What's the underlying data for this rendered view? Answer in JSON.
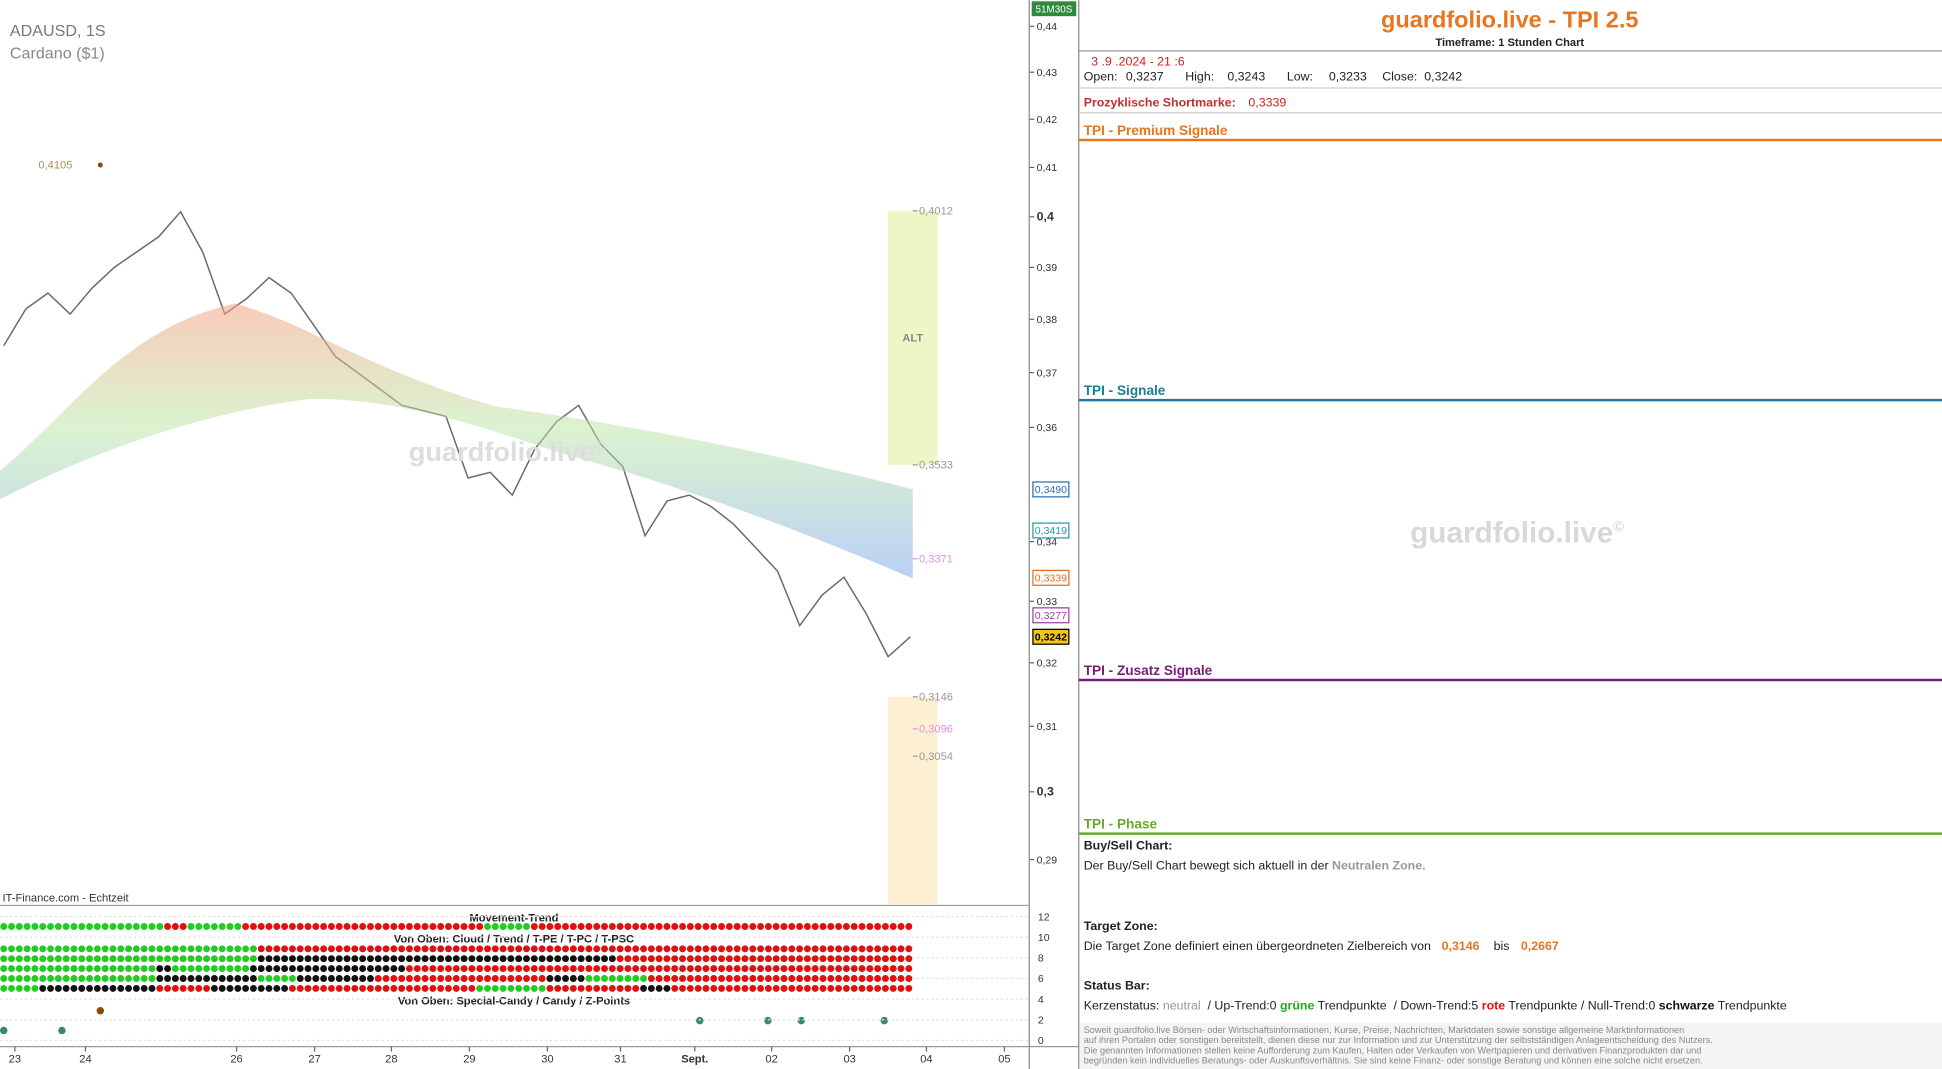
{
  "chart": {
    "symbol": "ADAUSD, 1S",
    "name": "Cardano ($1)",
    "countdown": "51M30S",
    "watermark": "guardfolio.live",
    "watermark_mark": "©",
    "source": "IT-Finance.com - Echtzeit",
    "log_scale": true,
    "ylim": [
      0.2836,
      0.4458
    ],
    "yticks": [
      {
        "value": 0.44,
        "label": "0,44"
      },
      {
        "value": 0.43,
        "label": "0,43"
      },
      {
        "value": 0.42,
        "label": "0,42"
      },
      {
        "value": 0.41,
        "label": "0,41"
      },
      {
        "value": 0.4,
        "label": "0,4"
      },
      {
        "value": 0.39,
        "label": "0,39"
      },
      {
        "value": 0.38,
        "label": "0,38"
      },
      {
        "value": 0.37,
        "label": "0,37"
      },
      {
        "value": 0.36,
        "label": "0,36"
      },
      {
        "value": 0.34,
        "label": "0,34"
      },
      {
        "value": 0.33,
        "label": "0,33"
      },
      {
        "value": 0.32,
        "label": "0,32"
      },
      {
        "value": 0.31,
        "label": "0,31"
      },
      {
        "value": 0.3,
        "label": "0,3"
      },
      {
        "value": 0.29,
        "label": "0,29"
      }
    ],
    "xticks": [
      "23",
      "24",
      "26",
      "27",
      "28",
      "29",
      "30",
      "31",
      "Sept.",
      "02",
      "03",
      "04",
      "05"
    ],
    "price": {
      "color": "#6a6a6a",
      "values": [
        0.375,
        0.382,
        0.385,
        0.381,
        0.386,
        0.39,
        0.393,
        0.396,
        0.401,
        0.393,
        0.381,
        0.384,
        0.388,
        0.385,
        0.379,
        0.373,
        0.37,
        0.367,
        0.364,
        0.363,
        0.362,
        0.351,
        0.352,
        0.348,
        0.356,
        0.361,
        0.364,
        0.357,
        0.353,
        0.341,
        0.347,
        0.348,
        0.346,
        0.343,
        0.339,
        0.335,
        0.326,
        0.331,
        0.334,
        0.328,
        0.321,
        0.3242
      ]
    },
    "high_label": {
      "value": 0.4105,
      "label": "0,4105",
      "color": "#b08a5a"
    },
    "levels": [
      {
        "value": 0.4012,
        "label": "0,4012",
        "color": "#999999"
      },
      {
        "value": 0.3533,
        "label": "0,3533",
        "color": "#999999"
      },
      {
        "value": 0.3371,
        "label": "0,3371",
        "color": "#e090e0"
      },
      {
        "value": 0.3146,
        "label": "0,3146",
        "color": "#999999"
      },
      {
        "value": 0.3096,
        "label": "0,3096",
        "color": "#e090e0"
      },
      {
        "value": 0.3054,
        "label": "0,3054",
        "color": "#999999"
      }
    ],
    "axis_marks": [
      {
        "value": 0.349,
        "label": "0,3490",
        "color": "#2a6fb0",
        "fill": "#ffffff"
      },
      {
        "value": 0.3419,
        "label": "0,3419",
        "color": "#20a0a0",
        "fill": "#ffffff"
      },
      {
        "value": 0.3339,
        "label": "0,3339",
        "color": "#e07020",
        "fill": "#ffffff"
      },
      {
        "value": 0.3277,
        "label": "0,3277",
        "color": "#a040a0",
        "fill": "#ffffff"
      },
      {
        "value": 0.3242,
        "label": "0,3242",
        "color": "#000000",
        "fill": "#f5c518"
      }
    ],
    "zones": [
      {
        "label": "ALT",
        "top": 0.4012,
        "bottom": 0.3533,
        "color": "#eef6c6"
      },
      {
        "top": 0.3146,
        "color": "#fdf0d2"
      }
    ]
  },
  "indicator": {
    "title1": "Movement-Trend",
    "title2": "Von Oben: Cloud / Trend / T-PE / T-PC / T-PSC",
    "title3": "Von Oben: Special-Candy / Candy / Z-Points",
    "ylim": [
      0,
      12
    ],
    "yticks": [
      12,
      10,
      8,
      6,
      4,
      2,
      0
    ],
    "rows": [
      [
        [
          "#22cc22",
          21
        ],
        [
          "#e01010",
          3
        ],
        [
          "#22cc22",
          7
        ],
        [
          "#e01010",
          31
        ],
        [
          "#22cc22",
          6
        ],
        [
          "#e01010",
          49
        ]
      ],
      [
        [
          "#22cc22",
          33
        ],
        [
          "#e01010",
          84
        ]
      ],
      [
        [
          "#22cc22",
          33
        ],
        [
          "#111111",
          46
        ],
        [
          "#e01010",
          38
        ]
      ],
      [
        [
          "#22cc22",
          20
        ],
        [
          "#111111",
          2
        ],
        [
          "#22cc22",
          10
        ],
        [
          "#111111",
          20
        ],
        [
          "#e01010",
          65
        ]
      ],
      [
        [
          "#22cc22",
          20
        ],
        [
          "#111111",
          13
        ],
        [
          "#22cc22",
          5
        ],
        [
          "#111111",
          10
        ],
        [
          "#e01010",
          22
        ],
        [
          "#111111",
          5
        ],
        [
          "#22cc22",
          8
        ],
        [
          "#e01010",
          34
        ]
      ],
      [
        [
          "#22cc22",
          5
        ],
        [
          "#111111",
          15
        ],
        [
          "#e01010",
          7
        ],
        [
          "#111111",
          10
        ],
        [
          "#e01010",
          24
        ],
        [
          "#22cc22",
          9
        ],
        [
          "#e01010",
          12
        ],
        [
          "#111111",
          4
        ],
        [
          "#e01010",
          31
        ]
      ]
    ]
  },
  "panel": {
    "title": "guardfolio.live - TPI 2.5",
    "timeframe": "Timeframe: 1 Stunden Chart",
    "date": "3 .9 .2024 - 21 :6",
    "ohlc": [
      {
        "label": "Open:",
        "value": "0,3237"
      },
      {
        "label": "High:",
        "value": "0,3243"
      },
      {
        "label": "Low:",
        "value": "0,3233"
      },
      {
        "label": "Close:",
        "value": "0,3242"
      }
    ],
    "shortmark": {
      "label": "Prozyklische Shortmarke:",
      "value": "0,3339"
    },
    "sections": [
      {
        "title": "TPI - Premium Signale",
        "color": "#e8761e"
      },
      {
        "title": "TPI - Signale",
        "color": "#1a7f9a"
      },
      {
        "title": "TPI - Zusatz Signale",
        "color": "#7a1a7a"
      },
      {
        "title": "TPI - Phase",
        "color": "#6aaa2a"
      }
    ],
    "watermark": "guardfolio.live",
    "watermark_mark": "©",
    "buy_sell": {
      "heading": "Buy/Sell Chart:",
      "text": "Der Buy/Sell Chart bewegt sich aktuell in der ",
      "zone": "Neutralen Zone."
    },
    "target": {
      "heading": "Target Zone:",
      "text": "Die Target Zone definiert einen übergeordneten Zielbereich von",
      "from": "0,3146",
      "between": "bis",
      "to": "0,2667"
    },
    "status": {
      "heading": "Status Bar:",
      "parts": [
        {
          "text": "Kerzenstatus: ",
          "color": "#222222",
          "bold": false
        },
        {
          "text": "neutral",
          "color": "#999999",
          "bold": false
        },
        {
          "text": "  / Up-Trend:0 ",
          "color": "#222222",
          "bold": false
        },
        {
          "text": "grüne",
          "color": "#22aa22",
          "bold": true
        },
        {
          "text": " Trendpunkte  / Down-Trend:5 ",
          "color": "#222222",
          "bold": false
        },
        {
          "text": "rote",
          "color": "#dd1111",
          "bold": true
        },
        {
          "text": " Trendpunkte / Null-Trend:0 ",
          "color": "#222222",
          "bold": false
        },
        {
          "text": "schwarze",
          "color": "#111111",
          "bold": true
        },
        {
          "text": " Trendpunkte",
          "color": "#222222",
          "bold": false
        }
      ]
    },
    "disclaimer": [
      "Soweit guardfolio.live Börsen- oder Wirtschaftsinformationen, Kurse, Preise, Nachrichten, Marktdaten sowie sonstige allgemeine Marktinformationen",
      "auf ihren Portalen oder sonstigen bereitstellt, dienen diese nur zur Information und zur Unterstützung der selbstständigen Anlageentscheidung des Nutzers.",
      "Die genannten Informationen stellen keine Aufforderung zum Kaufen, Halten oder Verkaufen von Wertpapieren und derivativen Finanzprodukten dar und",
      "begründen kein individuelles Beratungs- oder Auskunftsverhältnis. Sie sind keine Finanz- oder sonstige Beratung und können eine solche nicht ersetzen."
    ]
  }
}
